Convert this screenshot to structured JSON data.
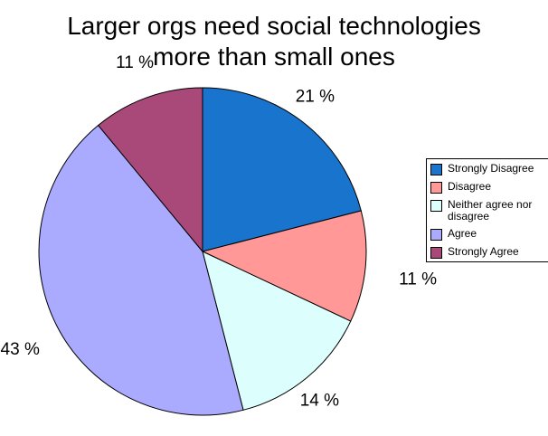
{
  "chart_data": {
    "type": "pie",
    "title": "Larger orgs need social technologies more than small ones",
    "title_lines": [
      "Larger orgs need social technologies",
      "more than small ones"
    ],
    "categories": [
      "Strongly Disagree",
      "Disagree",
      "Neither agree nor disagree",
      "Agree",
      "Strongly Agree"
    ],
    "values": [
      21,
      11,
      14,
      43,
      11
    ],
    "data_labels": [
      "21 %",
      "11 %",
      "14 %",
      "43 %",
      "11 %"
    ],
    "colors": [
      "#1874cd",
      "#ff9896",
      "#dcfffd",
      "#aaaaff",
      "#a8497a"
    ],
    "legend": {
      "placement": "right",
      "entries": [
        {
          "label": "Strongly Disagree",
          "color": "#1874cd"
        },
        {
          "label": "Disagree",
          "color": "#ff9896"
        },
        {
          "label": "Neither agree nor disagree",
          "color": "#dcfffd"
        },
        {
          "label": "Agree",
          "color": "#aaaaff"
        },
        {
          "label": "Strongly Agree",
          "color": "#a8497a"
        }
      ]
    }
  }
}
